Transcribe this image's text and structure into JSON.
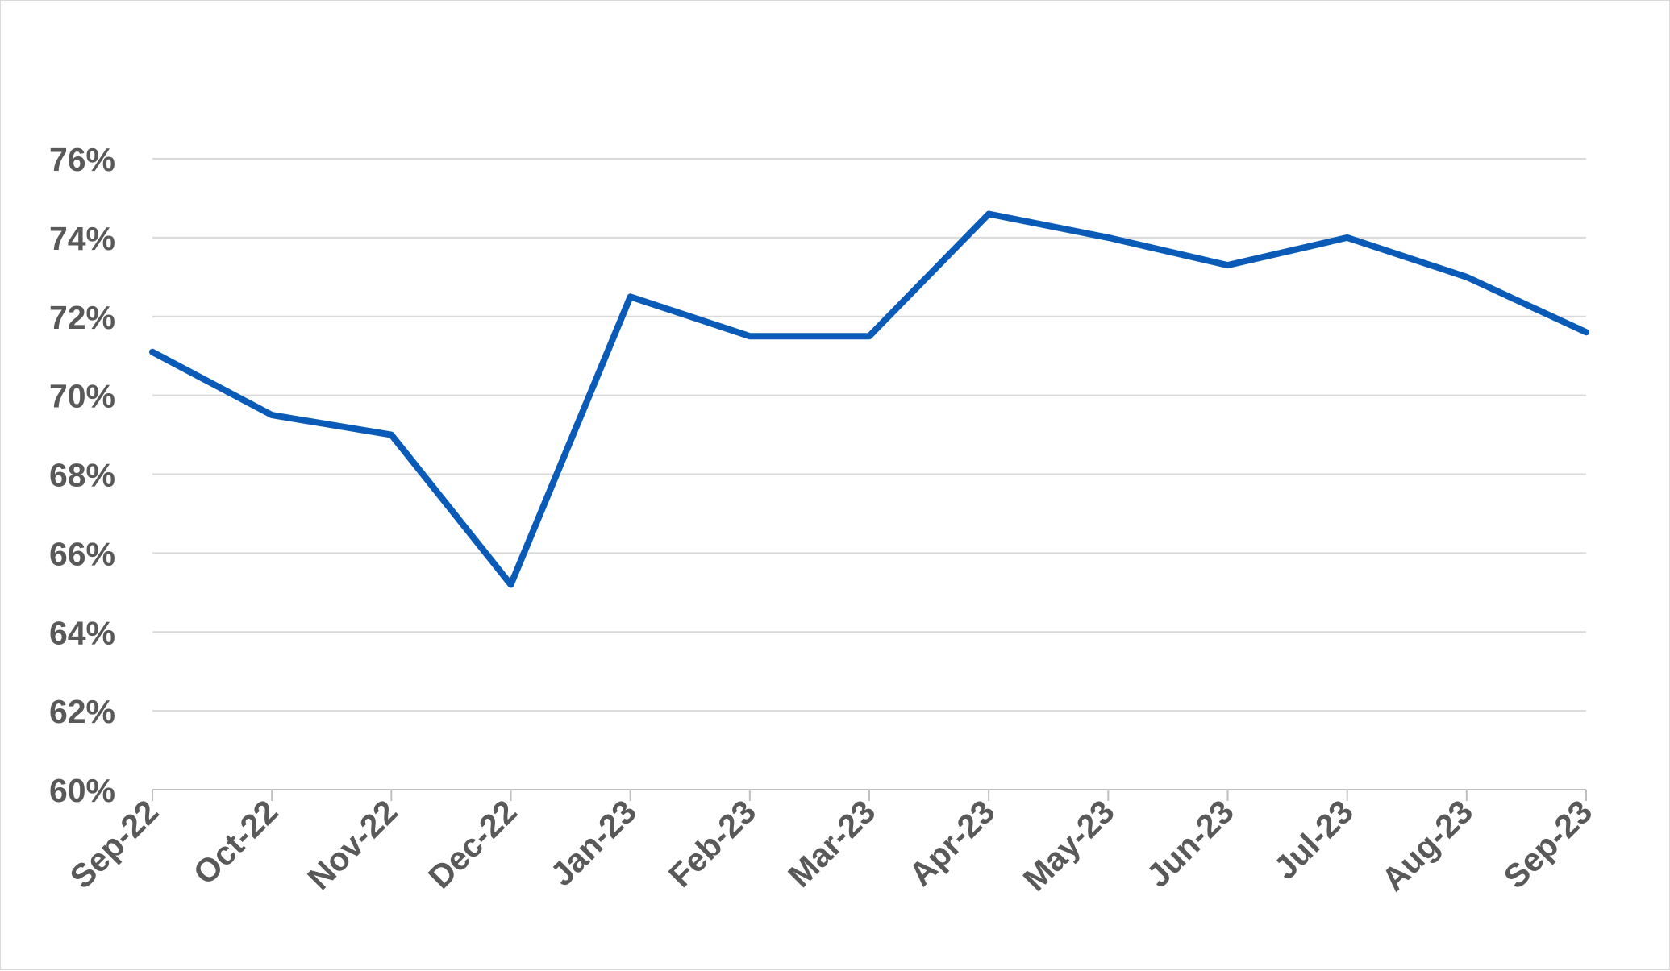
{
  "chart_data": {
    "type": "line",
    "title": "",
    "xlabel": "",
    "ylabel": "",
    "categories": [
      "Sep-22",
      "Oct-22",
      "Nov-22",
      "Dec-22",
      "Jan-23",
      "Feb-23",
      "Mar-23",
      "Apr-23",
      "May-23",
      "Jun-23",
      "Jul-23",
      "Aug-23",
      "Sep-23"
    ],
    "series": [
      {
        "values": [
          71.1,
          69.5,
          69.0,
          65.2,
          72.5,
          71.5,
          71.5,
          74.6,
          74.0,
          73.3,
          74.0,
          73.0,
          71.6
        ],
        "color": "#0a5bb8"
      }
    ],
    "ylim": [
      60,
      76
    ],
    "yticks": [
      60,
      62,
      64,
      66,
      68,
      70,
      72,
      74,
      76
    ],
    "ytick_format": "{v}%",
    "grid": true,
    "legend": "none"
  }
}
